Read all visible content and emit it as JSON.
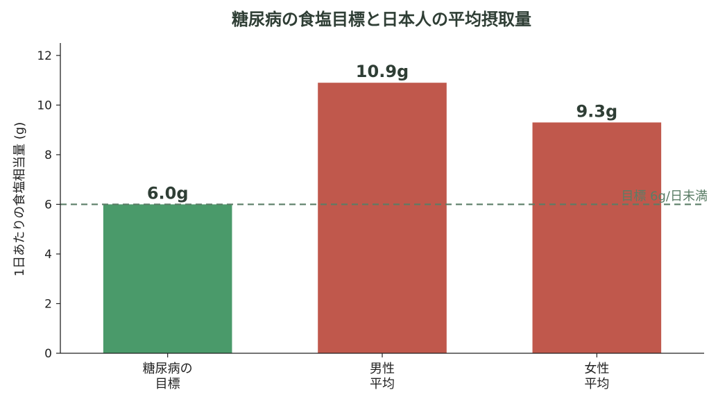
{
  "chart_data": {
    "type": "bar",
    "title": "糖尿病の食塩目標と日本人の平均摂取量",
    "ylabel": "1日あたりの食塩相当量 (g)",
    "xlabel": "",
    "ylim": [
      0,
      12.5
    ],
    "yticks": [
      0,
      2,
      4,
      6,
      8,
      10,
      12
    ],
    "categories": [
      [
        "糖尿病の",
        "目標"
      ],
      [
        "男性",
        "平均"
      ],
      [
        "女性",
        "平均"
      ]
    ],
    "values": [
      6.0,
      10.9,
      9.3
    ],
    "value_labels": [
      "6.0g",
      "10.9g",
      "9.3g"
    ],
    "bar_colors": [
      "#4a9a6a",
      "#c0584c",
      "#c0584c"
    ],
    "reference_line": {
      "value": 6,
      "label": "目標 6g/日未満",
      "color": "#5a7d66",
      "style": "dashed"
    },
    "grid": false,
    "legend": "none"
  }
}
